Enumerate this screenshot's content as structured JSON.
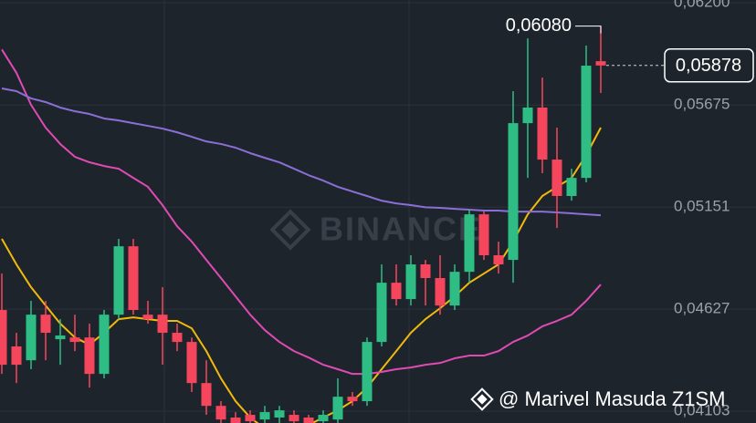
{
  "chart_data": {
    "type": "candlestick",
    "watermark": "BINANCE",
    "footer": "@ Marivel Masuda Z1SM",
    "ylim": [
      0.04043,
      0.06214
    ],
    "yticks": [
      {
        "value": 0.062,
        "label": "0,06200"
      },
      {
        "value": 0.05675,
        "label": "0,05675"
      },
      {
        "value": 0.05151,
        "label": "0,05151"
      },
      {
        "value": 0.04627,
        "label": "0,04627"
      },
      {
        "value": 0.04103,
        "label": "0,04103"
      }
    ],
    "grid": true,
    "up_color": "#2ebd85",
    "down_color": "#f6465d",
    "open": [
      0.04623,
      0.04436,
      0.04365,
      0.04599,
      0.04473,
      0.04482,
      0.04482,
      0.04295,
      0.04599,
      0.0495,
      0.04599,
      0.04599,
      0.04506,
      0.04459,
      0.04248,
      0.04131,
      0.04071,
      0.04085,
      0.04061,
      0.04071,
      0.04085,
      0.04071,
      0.04052,
      0.04061,
      0.04178,
      0.04155,
      0.04459,
      0.04763,
      0.04679,
      0.04857,
      0.04787,
      0.04646,
      0.04819,
      0.05114,
      0.04904,
      0.0488,
      0.05582,
      0.05662,
      0.05395,
      0.05208,
      0.05301,
      0.059
    ],
    "high": [
      0.0481,
      0.04506,
      0.0467,
      0.0467,
      0.04576,
      0.04599,
      0.04553,
      0.04623,
      0.04988,
      0.04988,
      0.0467,
      0.0474,
      0.04553,
      0.04482,
      0.04365,
      0.04155,
      0.04099,
      0.04108,
      0.04131,
      0.04131,
      0.04108,
      0.04085,
      0.04108,
      0.04272,
      0.04202,
      0.04482,
      0.04857,
      0.04857,
      0.04904,
      0.0488,
      0.04904,
      0.04857,
      0.05138,
      0.05128,
      0.04974,
      0.05746,
      0.06017,
      0.05816,
      0.05559,
      0.05348,
      0.0598,
      0.0608
    ],
    "low": [
      0.04295,
      0.04248,
      0.04319,
      0.04365,
      0.04342,
      0.04412,
      0.04225,
      0.04272,
      0.04576,
      0.04599,
      0.04553,
      0.04342,
      0.04412,
      0.04202,
      0.04085,
      0.04042,
      0.04042,
      0.04042,
      0.04042,
      0.04042,
      0.04042,
      0.04042,
      0.04042,
      0.04042,
      0.04131,
      0.04131,
      0.04436,
      0.04646,
      0.04646,
      0.04646,
      0.04599,
      0.04623,
      0.04763,
      0.0488,
      0.0481,
      0.04763,
      0.05301,
      0.05325,
      0.05044,
      0.05184,
      0.05278,
      0.05737
    ],
    "close": [
      0.04342,
      0.04342,
      0.04599,
      0.04506,
      0.04492,
      0.04459,
      0.04295,
      0.04599,
      0.0495,
      0.04623,
      0.04576,
      0.04506,
      0.04459,
      0.04248,
      0.04131,
      0.04061,
      0.04042,
      0.04052,
      0.04099,
      0.04108,
      0.04052,
      0.04042,
      0.04085,
      0.04178,
      0.04155,
      0.04459,
      0.04763,
      0.04679,
      0.04857,
      0.04787,
      0.04646,
      0.04819,
      0.05114,
      0.04904,
      0.04857,
      0.05582,
      0.05662,
      0.05395,
      0.05208,
      0.05301,
      0.05877,
      0.05878
    ],
    "series": [
      {
        "color": "#f0b90b",
        "values": [
          0.04988,
          0.04857,
          0.0474,
          0.04646,
          0.04553,
          0.04482,
          0.04445,
          0.04506,
          0.04576,
          0.04585,
          0.04576,
          0.04567,
          0.04567,
          0.04529,
          0.04412,
          0.04272,
          0.04155,
          0.04071,
          0.04014,
          0.04005,
          0.04014,
          0.04033,
          0.04071,
          0.04108,
          0.04155,
          0.04225,
          0.04319,
          0.04412,
          0.04506,
          0.04576,
          0.04632,
          0.04693,
          0.04763,
          0.0481,
          0.04857,
          0.04974,
          0.05114,
          0.05208,
          0.05255,
          0.05301,
          0.05418,
          0.05559
        ]
      },
      {
        "color": "#e04bb3",
        "values": [
          0.0596,
          0.0584,
          0.05676,
          0.05559,
          0.05475,
          0.05409,
          0.05381,
          0.05362,
          0.05348,
          0.05301,
          0.05255,
          0.05161,
          0.05053,
          0.04974,
          0.0488,
          0.04787,
          0.04693,
          0.04599,
          0.0452,
          0.04459,
          0.04412,
          0.04379,
          0.04342,
          0.04319,
          0.04295,
          0.04295,
          0.04305,
          0.04319,
          0.04328,
          0.04342,
          0.04351,
          0.04375,
          0.04389,
          0.04389,
          0.04412,
          0.04459,
          0.04492,
          0.04539,
          0.04567,
          0.04599,
          0.0467,
          0.04754
        ]
      },
      {
        "color": "#8b6fd6",
        "values": [
          0.0576,
          0.05746,
          0.05709,
          0.0569,
          0.05662,
          0.05643,
          0.05629,
          0.05606,
          0.05596,
          0.05582,
          0.05568,
          0.05554,
          0.05535,
          0.05512,
          0.05488,
          0.05475,
          0.05456,
          0.05428,
          0.05404,
          0.05381,
          0.05348,
          0.05315,
          0.05287,
          0.05255,
          0.05231,
          0.05208,
          0.05184,
          0.0517,
          0.05161,
          0.0515,
          0.05147,
          0.05142,
          0.05138,
          0.05133,
          0.05133,
          0.05128,
          0.05128,
          0.05128,
          0.05124,
          0.05119,
          0.05114,
          0.05109
        ]
      }
    ],
    "high_label": {
      "value": 0.0608,
      "label": "0,06080"
    },
    "last_price": {
      "value": 0.05878,
      "label": "0,05878"
    }
  }
}
